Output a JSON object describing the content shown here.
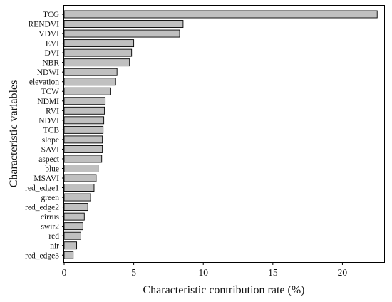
{
  "chart_data": {
    "type": "bar",
    "orientation": "horizontal",
    "xlabel": "Characteristic contribution rate (%)",
    "ylabel": "Characteristic variables",
    "xlim": [
      0,
      23
    ],
    "xticks": [
      0,
      5,
      10,
      15,
      20
    ],
    "grid": false,
    "legend": "none",
    "bar_color": "#c0c0c0",
    "edge_color": "#000000",
    "categories": [
      "TCG",
      "RENDVI",
      "VDVI",
      "EVI",
      "DVI",
      "NBR",
      "NDWI",
      "elevation",
      "TCW",
      "NDMI",
      "RVI",
      "NDVI",
      "TCB",
      "slope",
      "SAVI",
      "aspect",
      "blue",
      "MSAVI",
      "red_edge1",
      "green",
      "red_edge2",
      "cirrus",
      "swir2",
      "red",
      "nir",
      "red_edge3"
    ],
    "values": [
      22.5,
      8.55,
      8.3,
      5.0,
      4.85,
      4.7,
      3.8,
      3.7,
      3.35,
      2.95,
      2.9,
      2.85,
      2.8,
      2.75,
      2.75,
      2.7,
      2.45,
      2.3,
      2.15,
      1.9,
      1.7,
      1.45,
      1.35,
      1.2,
      0.9,
      0.65
    ]
  }
}
